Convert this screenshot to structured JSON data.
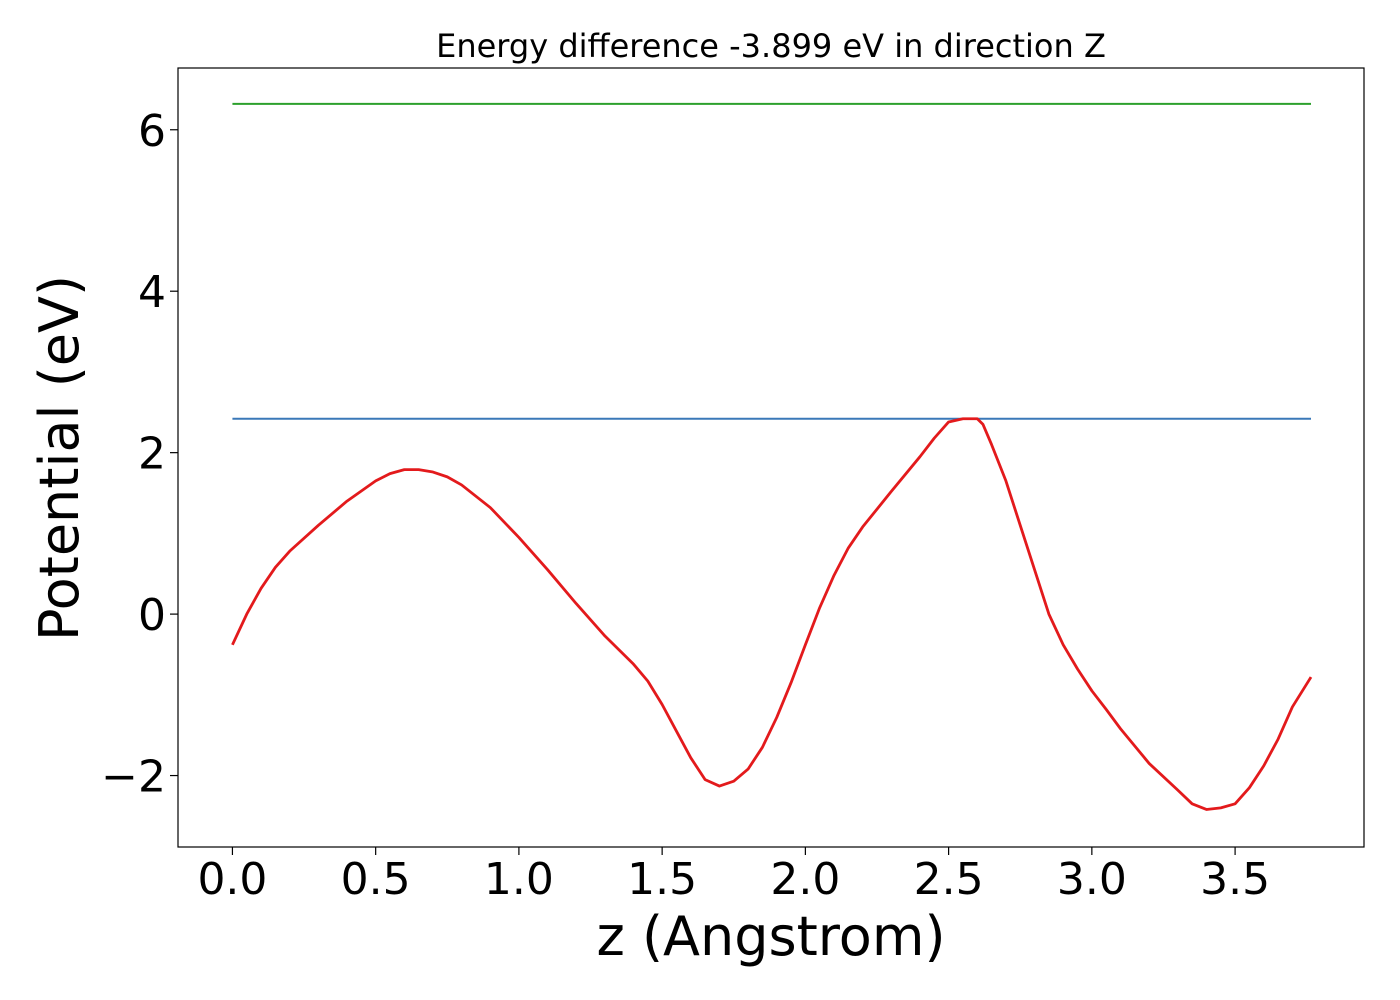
{
  "chart_data": {
    "type": "line",
    "title": "Energy difference -3.899 eV in direction Z",
    "xlabel": "z (Angstrom)",
    "ylabel": "Potential (eV)",
    "xlim": [
      -0.19,
      3.95
    ],
    "ylim": [
      -2.885,
      6.765
    ],
    "xticks": [
      0.0,
      0.5,
      1.0,
      1.5,
      2.0,
      2.5,
      3.0,
      3.5
    ],
    "xtick_labels": [
      "0.0",
      "0.5",
      "1.0",
      "1.5",
      "2.0",
      "2.5",
      "3.0",
      "3.5"
    ],
    "yticks": [
      -2,
      0,
      2,
      4,
      6
    ],
    "ytick_labels": [
      "−2",
      "0",
      "2",
      "4",
      "6"
    ],
    "grid": false,
    "series": [
      {
        "color": "#2ca02c",
        "x": [
          0.0,
          3.765
        ],
        "y": [
          6.32,
          6.32
        ]
      },
      {
        "color": "#3a78b8",
        "x": [
          0.0,
          3.765
        ],
        "y": [
          2.42,
          2.42
        ]
      },
      {
        "color": "#e31a1c",
        "x": [
          0.0,
          0.05,
          0.1,
          0.15,
          0.2,
          0.3,
          0.4,
          0.5,
          0.55,
          0.6,
          0.65,
          0.7,
          0.75,
          0.8,
          0.9,
          1.0,
          1.1,
          1.2,
          1.3,
          1.4,
          1.45,
          1.5,
          1.55,
          1.6,
          1.65,
          1.7,
          1.75,
          1.8,
          1.85,
          1.9,
          1.95,
          2.0,
          2.05,
          2.1,
          2.15,
          2.2,
          2.3,
          2.4,
          2.45,
          2.5,
          2.55,
          2.6,
          2.62,
          2.65,
          2.7,
          2.75,
          2.8,
          2.85,
          2.9,
          2.95,
          3.0,
          3.05,
          3.1,
          3.2,
          3.3,
          3.35,
          3.4,
          3.45,
          3.5,
          3.55,
          3.6,
          3.65,
          3.7,
          3.765
        ],
        "y": [
          -0.38,
          0.0,
          0.32,
          0.58,
          0.78,
          1.1,
          1.4,
          1.65,
          1.74,
          1.79,
          1.79,
          1.76,
          1.7,
          1.6,
          1.32,
          0.95,
          0.55,
          0.13,
          -0.27,
          -0.62,
          -0.83,
          -1.12,
          -1.45,
          -1.78,
          -2.05,
          -2.13,
          -2.07,
          -1.92,
          -1.65,
          -1.28,
          -0.85,
          -0.38,
          0.08,
          0.48,
          0.82,
          1.08,
          1.52,
          1.95,
          2.18,
          2.38,
          2.42,
          2.42,
          2.35,
          2.1,
          1.65,
          1.1,
          0.55,
          0.0,
          -0.38,
          -0.68,
          -0.95,
          -1.18,
          -1.42,
          -1.85,
          -2.18,
          -2.35,
          -2.42,
          -2.4,
          -2.35,
          -2.15,
          -1.88,
          -1.55,
          -1.15,
          -0.78
        ]
      }
    ]
  }
}
